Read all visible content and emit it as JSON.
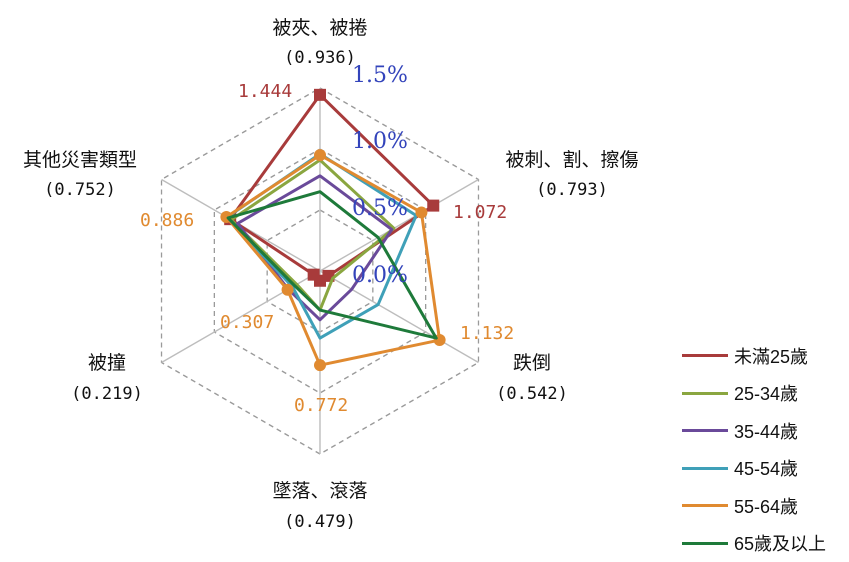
{
  "chart_data": {
    "type": "radar",
    "axes": [
      {
        "label": "被夾、被捲",
        "avg": "(0.936)"
      },
      {
        "label": "被刺、割、擦傷",
        "avg": "(0.793)"
      },
      {
        "label": "跌倒",
        "avg": "(0.542)"
      },
      {
        "label": "墜落、滾落",
        "avg": "(0.479)"
      },
      {
        "label": "被撞",
        "avg": "(0.219)"
      },
      {
        "label": "其他災害類型",
        "avg": "(0.752)"
      }
    ],
    "range": [
      0,
      1.5
    ],
    "ticks": [
      "0.0%",
      "0.5%",
      "1.0%",
      "1.5%"
    ],
    "grid": true,
    "legend_position": "bottom-right",
    "series": [
      {
        "name": "未滿25歲",
        "color": "#a83b3b",
        "marker": "square",
        "values": [
          1.444,
          1.072,
          0.08,
          0.08,
          0.06,
          0.85
        ]
      },
      {
        "name": "25-34歲",
        "color": "#8aa640",
        "values": [
          0.91,
          0.7,
          0.12,
          0.32,
          0.22,
          0.84
        ]
      },
      {
        "name": "35-44歲",
        "color": "#6a4a9a",
        "values": [
          0.78,
          0.68,
          0.3,
          0.4,
          0.3,
          0.78
        ]
      },
      {
        "name": "45-54歲",
        "color": "#3fa0b8",
        "values": [
          0.96,
          0.91,
          0.55,
          0.55,
          0.26,
          0.88
        ]
      },
      {
        "name": "55-64歲",
        "color": "#e08a30",
        "marker": "circle",
        "values": [
          0.95,
          0.96,
          1.132,
          0.772,
          0.307,
          0.886
        ]
      },
      {
        "name": "65歲及以上",
        "color": "#1e7a3a",
        "values": [
          0.65,
          0.55,
          1.1,
          0.32,
          0.24,
          0.87
        ]
      }
    ],
    "data_labels": [
      {
        "text": "1.444",
        "color": "#a83b3b"
      },
      {
        "text": "1.072",
        "color": "#a83b3b"
      },
      {
        "text": "1.132",
        "color": "#e08a30"
      },
      {
        "text": "0.772",
        "color": "#e08a30"
      },
      {
        "text": "0.307",
        "color": "#e08a30"
      },
      {
        "text": "0.886",
        "color": "#e08a30"
      }
    ]
  }
}
